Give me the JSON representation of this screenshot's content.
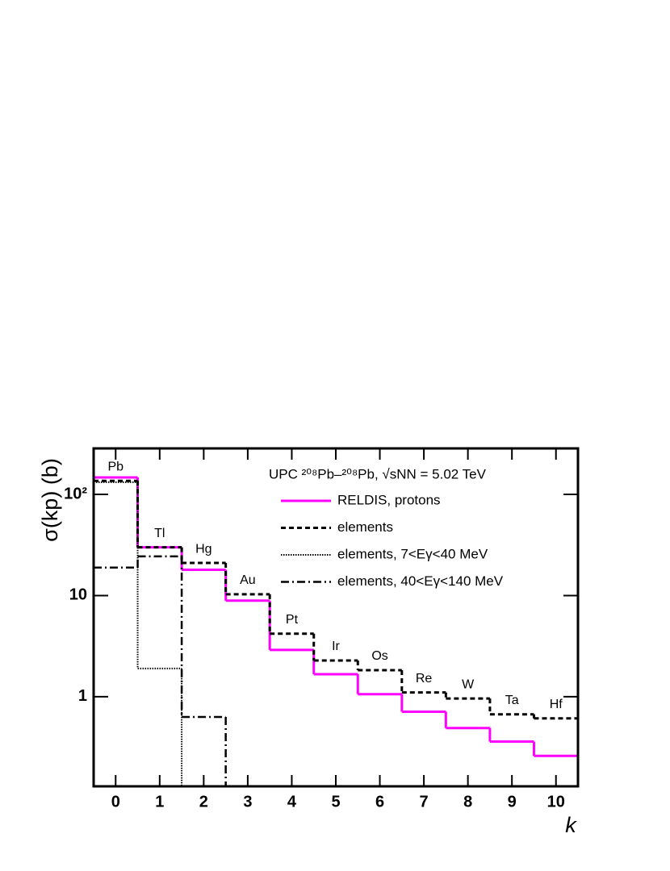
{
  "chart_data": {
    "type": "histogram",
    "x_label": "k",
    "y_label": "σ(kp) (b)",
    "legend_title": "UPC ²⁰⁸Pb–²⁰⁸Pb, √sNN = 5.02 TeV",
    "bins": [
      -0.5,
      0.5,
      1.5,
      2.5,
      3.5,
      4.5,
      5.5,
      6.5,
      7.5,
      8.5,
      9.5,
      10.5
    ],
    "element_labels": [
      "Pb",
      "Tl",
      "Hg",
      "Au",
      "Pt",
      "Ir",
      "Os",
      "Re",
      "W",
      "Ta",
      "Hf"
    ],
    "series": [
      {
        "name": "RELDIS, protons",
        "color": "#ff00ff",
        "dash": "solid",
        "values": [
          147,
          30,
          18,
          8.9,
          2.9,
          1.67,
          1.06,
          0.71,
          0.49,
          0.36,
          0.26
        ]
      },
      {
        "name": "elements",
        "color": "#000000",
        "dash": "dashed",
        "values": [
          136,
          30,
          21,
          10.3,
          4.2,
          2.28,
          1.83,
          1.1,
          0.96,
          0.67,
          0.61
        ]
      },
      {
        "name": "elements, 7<Eγ<40 MeV",
        "color": "#000000",
        "dash": "dotted",
        "values": [
          132,
          1.9,
          null,
          null,
          null,
          null,
          null,
          null,
          null,
          null,
          null
        ]
      },
      {
        "name": "elements, 40<Eγ<140 MeV",
        "color": "#000000",
        "dash": "dashdot",
        "values": [
          18.9,
          24.4,
          0.63,
          null,
          null,
          null,
          null,
          null,
          null,
          null,
          null
        ]
      }
    ],
    "xlim": [
      -0.5,
      10.5
    ],
    "xticks": [
      0,
      1,
      2,
      3,
      4,
      5,
      6,
      7,
      8,
      9,
      10
    ],
    "ylim": [
      0.13,
      285
    ],
    "log_y": true,
    "yticks": [
      1,
      10,
      {
        "value": 100,
        "label": "10²"
      }
    ]
  }
}
